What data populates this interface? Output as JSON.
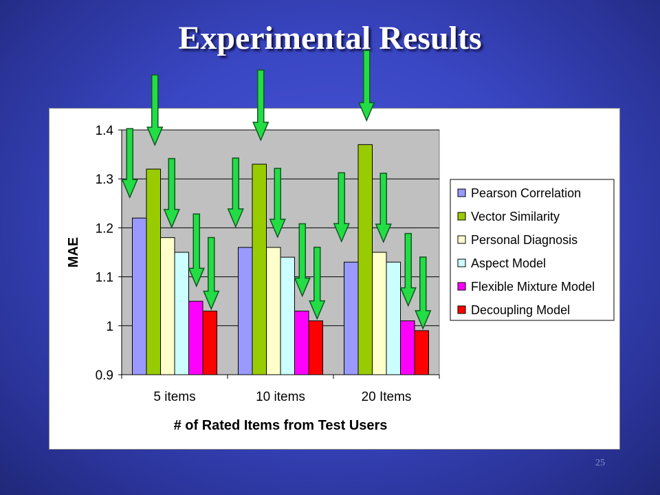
{
  "slide": {
    "title": "Experimental Results",
    "page_number": "25"
  },
  "chart_data": {
    "type": "bar",
    "categories": [
      "5 items",
      "10 items",
      "20 Items"
    ],
    "series": [
      {
        "name": "Pearson Correlation",
        "color": "#9999ff",
        "values": [
          1.22,
          1.16,
          1.13
        ]
      },
      {
        "name": "Vector Similarity",
        "color": "#99cc00",
        "values": [
          1.32,
          1.33,
          1.37
        ]
      },
      {
        "name": "Personal Diagnosis",
        "color": "#ffffcc",
        "values": [
          1.18,
          1.16,
          1.15
        ]
      },
      {
        "name": "Aspect Model",
        "color": "#ccffff",
        "values": [
          1.15,
          1.14,
          1.13
        ]
      },
      {
        "name": "Flexible Mixture Model",
        "color": "#ff00ff",
        "values": [
          1.05,
          1.03,
          1.01
        ]
      },
      {
        "name": "Decoupling Model",
        "color": "#ff0000",
        "values": [
          1.03,
          1.01,
          0.99
        ]
      }
    ],
    "xlabel": "# of Rated Items from Test Users",
    "ylabel": "MAE",
    "ylim": [
      0.9,
      1.4
    ],
    "yticks": [
      "0.9",
      "1",
      "1.1",
      "1.2",
      "1.3",
      "1.4"
    ],
    "grid": true,
    "plot_background": "#c0c0c0",
    "legend_position": "right",
    "annotations": {
      "type": "green-arrows-pointing-down",
      "color": "#22dd44"
    }
  }
}
